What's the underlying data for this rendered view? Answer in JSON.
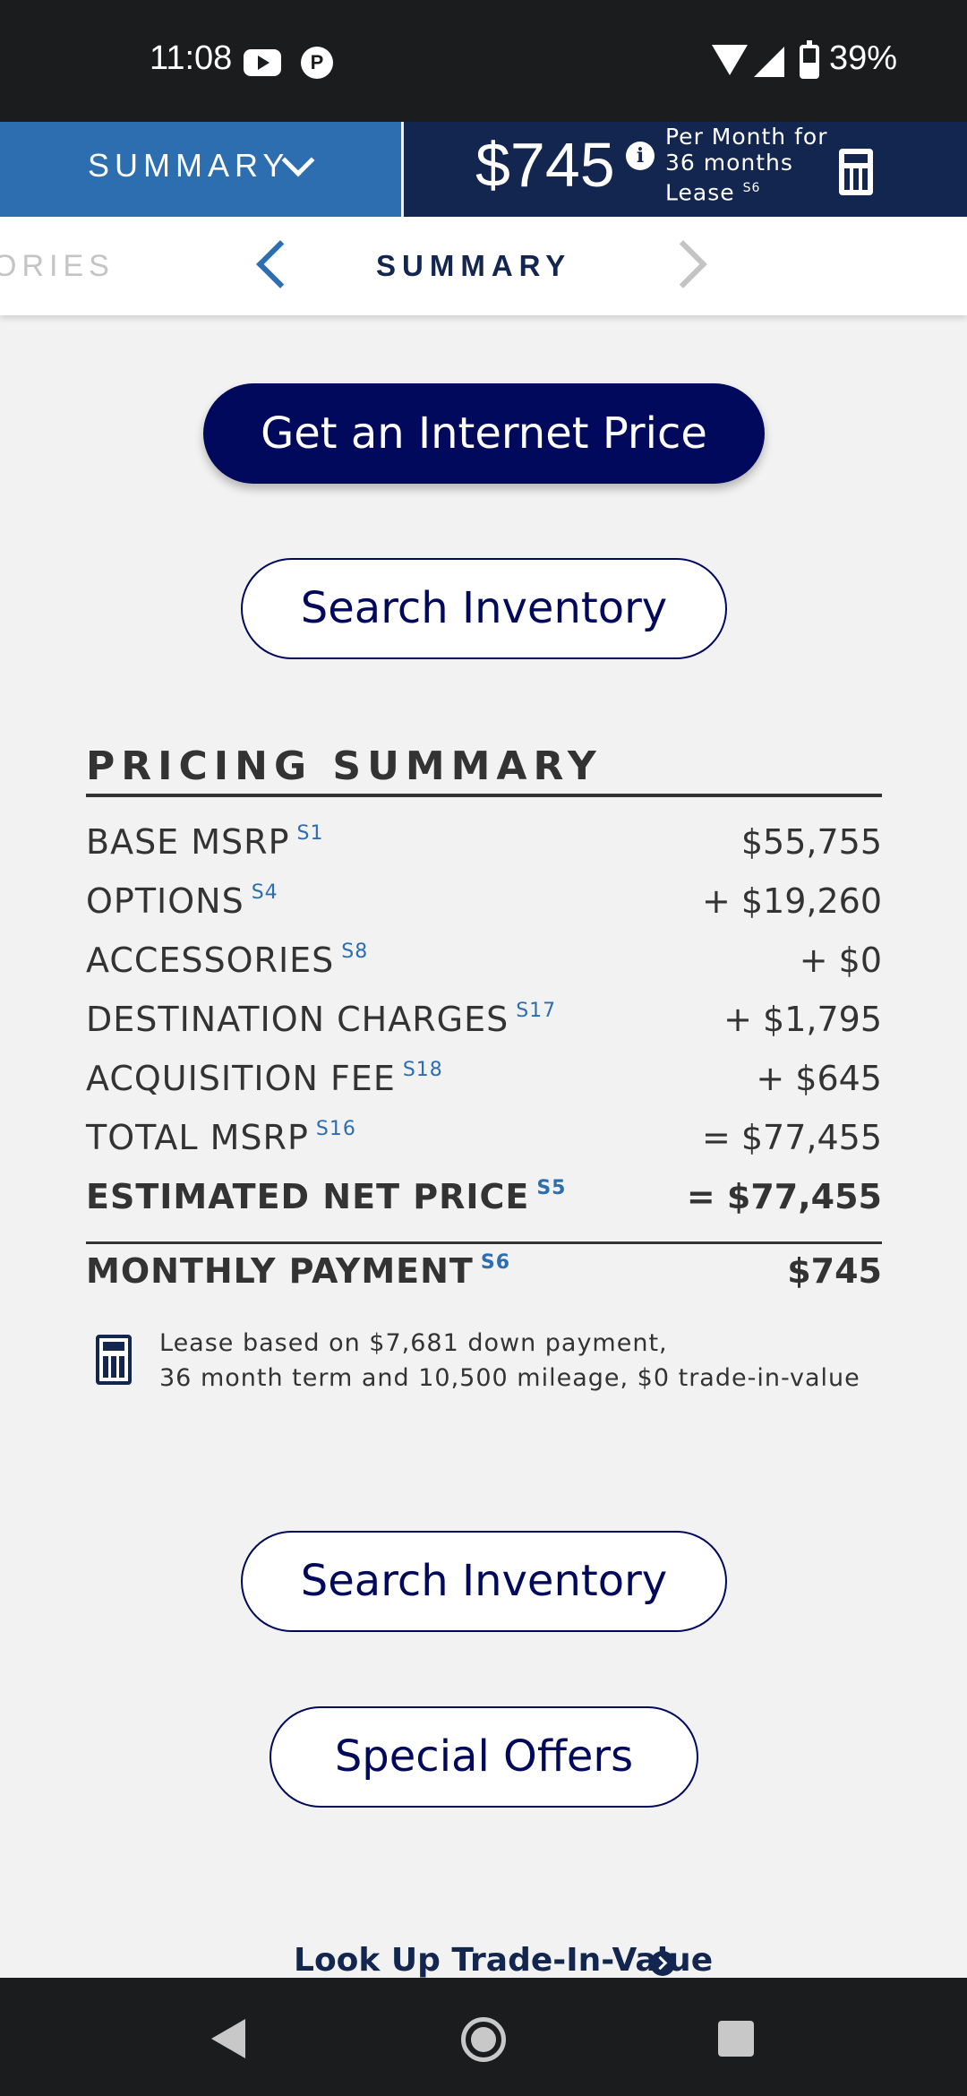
{
  "status_bar": {
    "time": "11:08",
    "battery": "39%",
    "icons": [
      "youtube-icon",
      "p-app-icon",
      "wifi-icon",
      "signal-icon",
      "battery-icon"
    ]
  },
  "header": {
    "section_selector": "SUMMARY",
    "price": "$745",
    "price_note_line1": "Per Month for",
    "price_note_line2": "36 months",
    "price_note_line3": "Lease",
    "price_note_ref": "S6"
  },
  "tabs": {
    "previous": "ORIES",
    "current": "SUMMARY"
  },
  "buttons": {
    "internet_price": "Get an Internet Price",
    "search_inventory": "Search Inventory",
    "special_offers": "Special Offers"
  },
  "pricing_summary": {
    "title": "PRICING SUMMARY",
    "rows": [
      {
        "label": "BASE MSRP",
        "ref": "S1",
        "value": "$55,755"
      },
      {
        "label": "OPTIONS",
        "ref": "S4",
        "value": "+ $19,260"
      },
      {
        "label": "ACCESSORIES",
        "ref": "S8",
        "value": "+ $0"
      },
      {
        "label": "DESTINATION CHARGES",
        "ref": "S17",
        "value": "+ $1,795"
      },
      {
        "label": "ACQUISITION FEE",
        "ref": "S18",
        "value": "+ $645"
      },
      {
        "label": "TOTAL MSRP",
        "ref": "S16",
        "value": "= $77,455"
      },
      {
        "label": "ESTIMATED NET PRICE",
        "ref": "S5",
        "value": "= $77,455"
      }
    ],
    "monthly": {
      "label": "MONTHLY PAYMENT",
      "ref": "S6",
      "value": "$745"
    },
    "lease_line1": "Lease based on $7,681 down payment,",
    "lease_line2": "36 month term and 10,500 mileage, $0 trade-in-value"
  },
  "trade_in_link": "Look Up Trade-In-Value",
  "colors": {
    "navy": "#00095b",
    "dark_blue": "#12264f",
    "accent_blue": "#2c6eb0",
    "background": "#f2f2f2"
  }
}
